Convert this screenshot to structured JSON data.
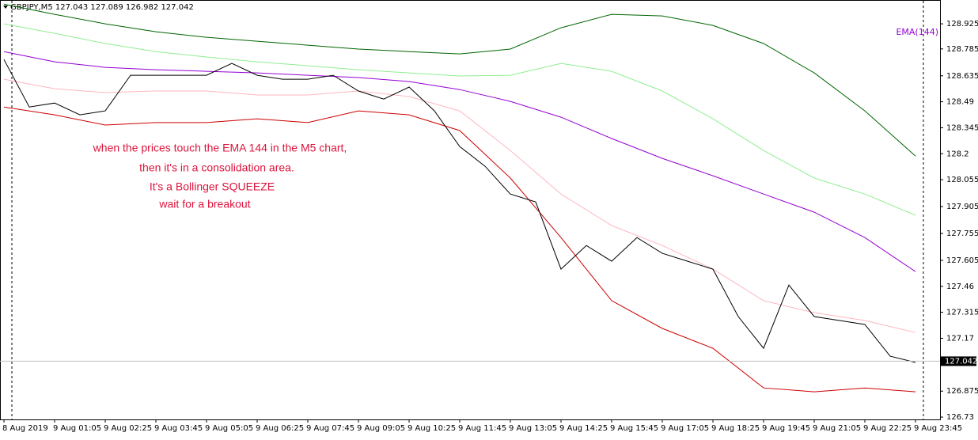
{
  "chart_data": {
    "type": "line",
    "title": "GBPJPY,M5  127.043 127.089 126.982 127.042",
    "indicator_label": "EMA(144)",
    "annotation": [
      "when the prices touch the EMA 144 in the M5 chart,",
      "then it's in a consolidation area.",
      "It's a Bollinger SQUEEZE",
      "wait for a breakout"
    ],
    "last_price": 127.042,
    "xlim": [
      -1.25,
      295.75
    ],
    "ylim": [
      126.717,
      129.058
    ],
    "xticks": [
      {
        "value": 0,
        "label": "8 Aug 2019"
      },
      {
        "value": 16,
        "label": "9 Aug 01:05"
      },
      {
        "value": 32,
        "label": "9 Aug 02:25"
      },
      {
        "value": 48,
        "label": "9 Aug 03:45"
      },
      {
        "value": 64,
        "label": "9 Aug 05:05"
      },
      {
        "value": 80,
        "label": "9 Aug 06:25"
      },
      {
        "value": 96,
        "label": "9 Aug 07:45"
      },
      {
        "value": 112,
        "label": "9 Aug 09:05"
      },
      {
        "value": 128,
        "label": "9 Aug 10:25"
      },
      {
        "value": 144,
        "label": "9 Aug 11:45"
      },
      {
        "value": 160,
        "label": "9 Aug 13:05"
      },
      {
        "value": 176,
        "label": "9 Aug 14:25"
      },
      {
        "value": 192,
        "label": "9 Aug 15:45"
      },
      {
        "value": 208,
        "label": "9 Aug 17:05"
      },
      {
        "value": 224,
        "label": "9 Aug 18:25"
      },
      {
        "value": 240,
        "label": "9 Aug 19:45"
      },
      {
        "value": 256,
        "label": "9 Aug 21:05"
      },
      {
        "value": 272,
        "label": "9 Aug 22:25"
      },
      {
        "value": 288,
        "label": "9 Aug 23:45"
      }
    ],
    "yticks": [
      128.925,
      128.785,
      128.635,
      128.49,
      128.345,
      128.2,
      128.055,
      127.905,
      127.755,
      127.605,
      127.46,
      127.315,
      127.17,
      126.875,
      126.73
    ],
    "series": [
      {
        "name": "EMA(144)",
        "color": "#9400d3",
        "x": [
          0,
          16,
          32,
          48,
          64,
          80,
          96,
          112,
          128,
          144,
          160,
          176,
          192,
          208,
          224,
          240,
          256,
          272,
          288
        ],
        "values": [
          128.77,
          128.713,
          128.682,
          128.669,
          128.66,
          128.651,
          128.638,
          128.625,
          128.603,
          128.558,
          128.492,
          128.404,
          128.285,
          128.174,
          128.077,
          127.975,
          127.874,
          127.732,
          127.542
        ]
      },
      {
        "name": "Upper band outer",
        "color": "#006400",
        "x": [
          0,
          16,
          32,
          48,
          64,
          80,
          96,
          112,
          128,
          144,
          160,
          176,
          192,
          208,
          224,
          240,
          256,
          272,
          288
        ],
        "values": [
          129.035,
          128.978,
          128.925,
          128.881,
          128.85,
          128.828,
          128.806,
          128.784,
          128.77,
          128.757,
          128.784,
          128.903,
          128.978,
          128.969,
          128.916,
          128.815,
          128.651,
          128.439,
          128.187
        ]
      },
      {
        "name": "Upper band inner",
        "color": "#90ee90",
        "x": [
          0,
          16,
          32,
          48,
          64,
          80,
          96,
          112,
          128,
          144,
          160,
          176,
          192,
          208,
          224,
          240,
          256,
          272,
          288
        ],
        "values": [
          128.925,
          128.872,
          128.815,
          128.77,
          128.74,
          128.713,
          128.691,
          128.669,
          128.651,
          128.634,
          128.638,
          128.704,
          128.66,
          128.55,
          128.395,
          128.218,
          128.064,
          127.975,
          127.856
        ]
      },
      {
        "name": "Lower band inner",
        "color": "#ffb6c1",
        "x": [
          0,
          16,
          32,
          48,
          64,
          80,
          96,
          112,
          128,
          144,
          160,
          176,
          192,
          208,
          224,
          240,
          256,
          272,
          288
        ],
        "values": [
          128.616,
          128.563,
          128.541,
          128.55,
          128.55,
          128.528,
          128.528,
          128.55,
          128.519,
          128.439,
          128.218,
          127.975,
          127.799,
          127.688,
          127.556,
          127.38,
          127.313,
          127.269,
          127.202
        ]
      },
      {
        "name": "Lower band outer",
        "color": "#cc0000",
        "x": [
          0,
          16,
          32,
          48,
          64,
          80,
          96,
          112,
          128,
          144,
          160,
          176,
          192,
          208,
          224,
          240,
          256,
          272,
          288
        ],
        "values": [
          128.461,
          128.417,
          128.36,
          128.374,
          128.374,
          128.395,
          128.374,
          128.439,
          128.417,
          128.329,
          128.064,
          127.732,
          127.38,
          127.225,
          127.114,
          126.893,
          126.871,
          126.893,
          126.871
        ]
      },
      {
        "name": "GBPJPY",
        "color": "#000000",
        "x": [
          0,
          8,
          16,
          24,
          32,
          40,
          48,
          56,
          64,
          72,
          80,
          88,
          96,
          104,
          112,
          120,
          128,
          136,
          144,
          152,
          160,
          168,
          176,
          184,
          192,
          200,
          208,
          216,
          224,
          232,
          240,
          248,
          256,
          264,
          272,
          280,
          288
        ],
        "values": [
          128.726,
          128.461,
          128.483,
          128.417,
          128.439,
          128.638,
          128.638,
          128.638,
          128.638,
          128.704,
          128.638,
          128.616,
          128.616,
          128.638,
          128.55,
          128.505,
          128.572,
          128.439,
          128.24,
          128.13,
          127.975,
          127.931,
          127.556,
          127.688,
          127.6,
          127.732,
          127.644,
          127.6,
          127.556,
          127.291,
          127.114,
          127.467,
          127.291,
          127.269,
          127.247,
          127.07,
          127.035
        ]
      }
    ]
  }
}
